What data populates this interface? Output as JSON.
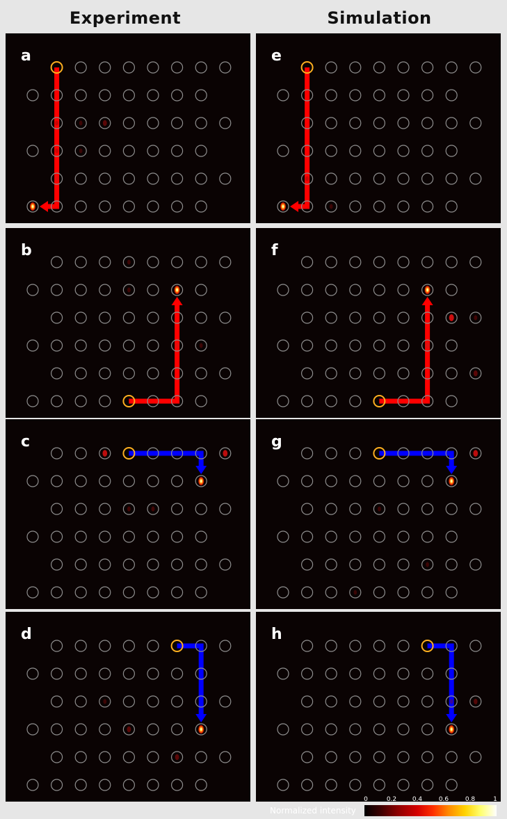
{
  "columns": {
    "left": "Experiment",
    "right": "Simulation"
  },
  "colors": {
    "path_red": "#ff0000",
    "path_blue": "#0000ff",
    "source": "#ffb020",
    "ring": "#8f8f8f",
    "panel_bg": "#0a0303"
  },
  "colorbar": {
    "title": "Normalized intensity",
    "ticks": [
      "0",
      "0.2",
      "0.4",
      "0.6",
      "0.8",
      "1"
    ]
  },
  "panels": [
    {
      "label": "a",
      "path_color": "red",
      "source": [
        1,
        0
      ],
      "path": [
        [
          1,
          0
        ],
        [
          1,
          5
        ],
        [
          0,
          5
        ]
      ],
      "spots": [
        [
          0,
          5,
          1.0
        ],
        [
          1,
          4,
          0.35
        ],
        [
          1,
          3,
          0.12
        ],
        [
          1,
          2,
          0.15
        ],
        [
          2,
          2,
          0.12
        ],
        [
          3,
          2,
          0.3
        ],
        [
          2,
          3,
          0.1
        ]
      ]
    },
    {
      "label": "b",
      "path_color": "red",
      "source": [
        4,
        5
      ],
      "path": [
        [
          4,
          5
        ],
        [
          6,
          5
        ],
        [
          6,
          1
        ]
      ],
      "spots": [
        [
          6,
          1,
          1.0
        ],
        [
          6,
          3,
          0.35
        ],
        [
          4,
          0,
          0.12
        ],
        [
          4,
          1,
          0.12
        ],
        [
          7,
          3,
          0.12
        ]
      ]
    },
    {
      "label": "c",
      "path_color": "blue",
      "source": [
        4,
        0
      ],
      "path": [
        [
          4,
          0
        ],
        [
          7,
          0
        ],
        [
          7,
          1
        ]
      ],
      "spots": [
        [
          7,
          1,
          1.0
        ],
        [
          3,
          0,
          0.45
        ],
        [
          8,
          0,
          0.45
        ],
        [
          4,
          2,
          0.15
        ],
        [
          5,
          2,
          0.15
        ]
      ]
    },
    {
      "label": "d",
      "path_color": "blue",
      "source": [
        6,
        0
      ],
      "path": [
        [
          6,
          0
        ],
        [
          7,
          0
        ],
        [
          7,
          3
        ]
      ],
      "spots": [
        [
          7,
          3,
          1.0
        ],
        [
          4,
          3,
          0.3
        ],
        [
          6,
          4,
          0.3
        ],
        [
          3,
          2,
          0.12
        ]
      ]
    },
    {
      "label": "e",
      "path_color": "red",
      "source": [
        1,
        0
      ],
      "path": [
        [
          1,
          0
        ],
        [
          1,
          5
        ],
        [
          0,
          5
        ]
      ],
      "spots": [
        [
          0,
          5,
          1.0
        ],
        [
          1,
          4,
          0.15
        ],
        [
          2,
          5,
          0.12
        ]
      ]
    },
    {
      "label": "f",
      "path_color": "red",
      "source": [
        4,
        5
      ],
      "path": [
        [
          4,
          5
        ],
        [
          6,
          5
        ],
        [
          6,
          1
        ]
      ],
      "spots": [
        [
          6,
          1,
          1.0
        ],
        [
          6,
          3,
          0.5
        ],
        [
          7,
          2,
          0.5
        ],
        [
          8,
          2,
          0.15
        ],
        [
          8,
          4,
          0.3
        ]
      ]
    },
    {
      "label": "g",
      "path_color": "blue",
      "source": [
        4,
        0
      ],
      "path": [
        [
          4,
          0
        ],
        [
          7,
          0
        ],
        [
          7,
          1
        ]
      ],
      "spots": [
        [
          7,
          1,
          1.0
        ],
        [
          8,
          0,
          0.45
        ],
        [
          4,
          2,
          0.12
        ],
        [
          6,
          4,
          0.12
        ],
        [
          3,
          5,
          0.1
        ]
      ]
    },
    {
      "label": "h",
      "path_color": "blue",
      "source": [
        6,
        0
      ],
      "path": [
        [
          6,
          0
        ],
        [
          7,
          0
        ],
        [
          7,
          3
        ]
      ],
      "spots": [
        [
          7,
          3,
          1.0
        ],
        [
          8,
          2,
          0.25
        ],
        [
          7,
          2,
          0.12
        ]
      ]
    }
  ]
}
